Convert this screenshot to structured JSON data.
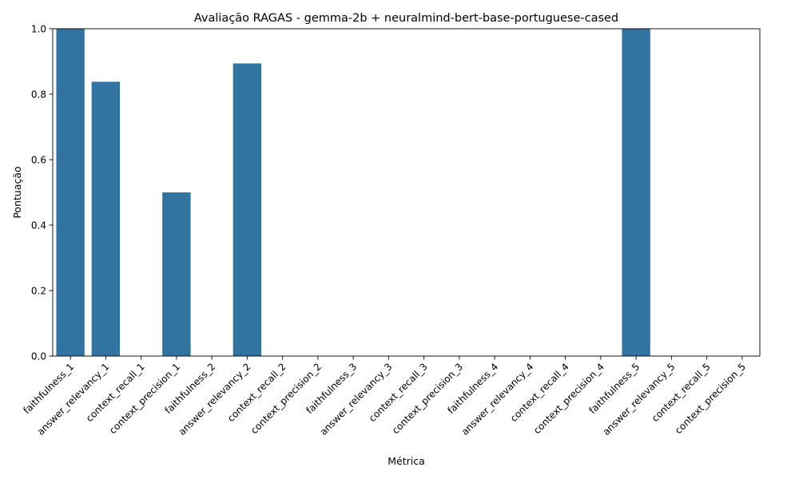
{
  "chart_data": {
    "type": "bar",
    "title": "Avaliação RAGAS - gemma-2b + neuralmind-bert-base-portuguese-cased",
    "xlabel": "Métrica",
    "ylabel": "Pontuação",
    "ylim": [
      0,
      1.0
    ],
    "yticks": [
      "0.0",
      "0.2",
      "0.4",
      "0.6",
      "0.8",
      "1.0"
    ],
    "grid": false,
    "bar_color": "#3274a1",
    "categories": [
      "faithfulness_1",
      "answer_relevancy_1",
      "context_recall_1",
      "context_precision_1",
      "faithfulness_2",
      "answer_relevancy_2",
      "context_recall_2",
      "context_precision_2",
      "faithfulness_3",
      "answer_relevancy_3",
      "context_recall_3",
      "context_precision_3",
      "faithfulness_4",
      "answer_relevancy_4",
      "context_recall_4",
      "context_precision_4",
      "faithfulness_5",
      "answer_relevancy_5",
      "context_recall_5",
      "context_precision_5"
    ],
    "values": [
      1.0,
      0.838,
      0.0,
      0.5,
      0.0,
      0.894,
      0.0,
      0.0,
      0.0,
      0.0,
      0.0,
      0.0,
      0.0,
      0.0,
      0.0,
      0.0,
      1.0,
      0.0,
      0.0,
      0.0
    ]
  }
}
